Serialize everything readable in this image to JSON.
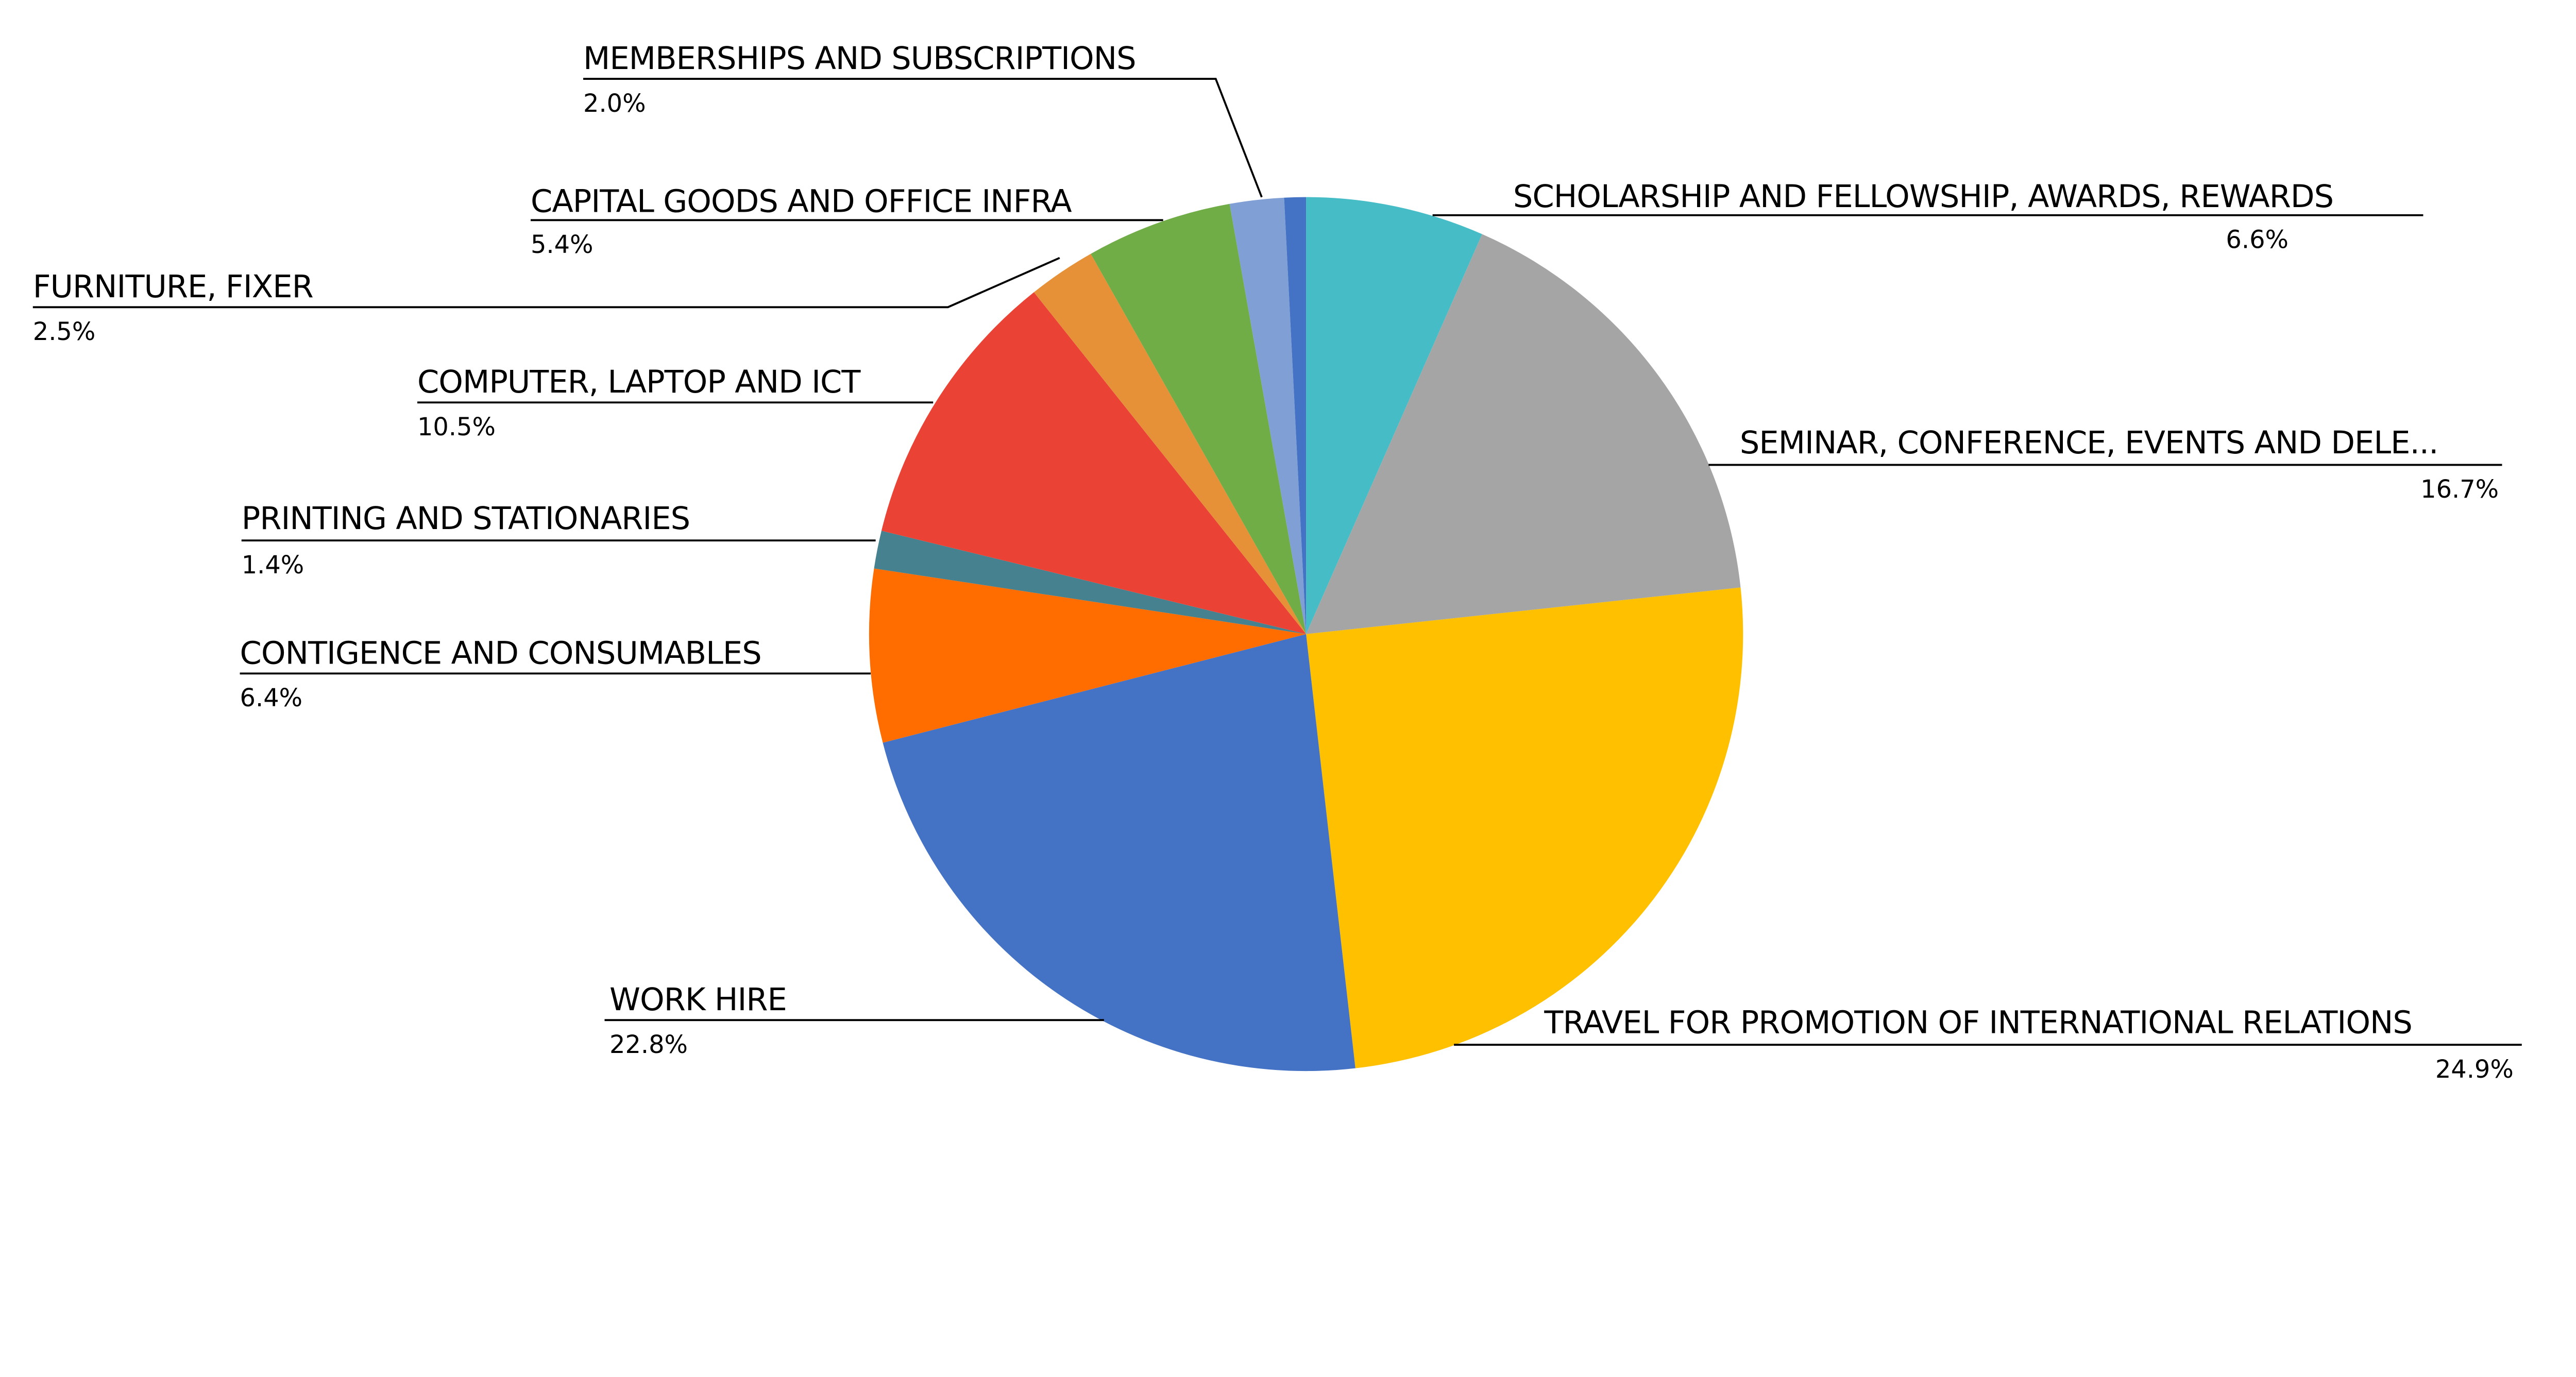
{
  "chart_data": {
    "type": "pie",
    "start_angle": "12 o'clock",
    "direction": "clockwise",
    "slices": [
      {
        "label": "SCHOLARSHIP AND FELLOWSHIP, AWARDS, REWARDS",
        "value": 6.6,
        "pct_label": "6.6%",
        "color": "#46BDC6"
      },
      {
        "label": "SEMINAR, CONFERENCE, EVENTS AND DELE...",
        "value": 16.7,
        "pct_label": "16.7%",
        "color": "#A5A5A5"
      },
      {
        "label": "TRAVEL FOR PROMOTION OF INTERNATIONAL RELATIONS",
        "value": 24.9,
        "pct_label": "24.9%",
        "color": "#FFC000"
      },
      {
        "label": "WORK HIRE",
        "value": 22.8,
        "pct_label": "22.8%",
        "color": "#4472C4"
      },
      {
        "label": "CONTIGENCE AND CONSUMABLES",
        "value": 6.4,
        "pct_label": "6.4%",
        "color": "#FF6D01"
      },
      {
        "label": "PRINTING AND STATIONARIES",
        "value": 1.4,
        "pct_label": "1.4%",
        "color": "#45818E"
      },
      {
        "label": "COMPUTER, LAPTOP AND ICT",
        "value": 10.5,
        "pct_label": "10.5%",
        "color": "#EA4335"
      },
      {
        "label": "FURNITURE, FIXER",
        "value": 2.5,
        "pct_label": "2.5%",
        "color": "#E69138"
      },
      {
        "label": "CAPITAL GOODS AND OFFICE INFRA",
        "value": 5.4,
        "pct_label": "5.4%",
        "color": "#70AD47"
      },
      {
        "label": "MEMBERSHIPS AND SUBSCRIPTIONS",
        "value": 2.0,
        "pct_label": "2.0%",
        "color": "#7F9FD5"
      },
      {
        "value": 0.8,
        "color": "#4472C4"
      }
    ]
  }
}
